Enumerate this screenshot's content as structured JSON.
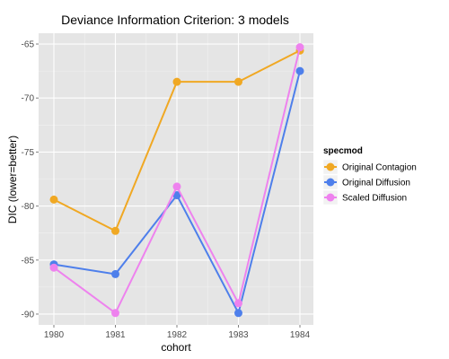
{
  "chart_data": {
    "type": "line",
    "title": "Deviance Information Criterion: 3 models",
    "xlabel": "cohort",
    "ylabel": "DIC (lower=better)",
    "categories": [
      "1980",
      "1981",
      "1982",
      "1983",
      "1984"
    ],
    "yticks": [
      -90,
      -85,
      -80,
      -75,
      -70,
      -65
    ],
    "ylim": [
      -91,
      -64
    ],
    "grid": true,
    "legend": {
      "title": "specmod",
      "position": "right"
    },
    "series": [
      {
        "name": "Original Contagion",
        "color": "#F0A823",
        "values": [
          -79.4,
          -82.3,
          -68.5,
          -68.5,
          -65.6
        ]
      },
      {
        "name": "Original Diffusion",
        "color": "#4E7FEB",
        "values": [
          -85.4,
          -86.3,
          -79.0,
          -89.9,
          -67.5
        ]
      },
      {
        "name": "Scaled Diffusion",
        "color": "#EE82EE",
        "values": [
          -85.7,
          -89.9,
          -78.2,
          -89.0,
          -65.3
        ]
      }
    ]
  }
}
